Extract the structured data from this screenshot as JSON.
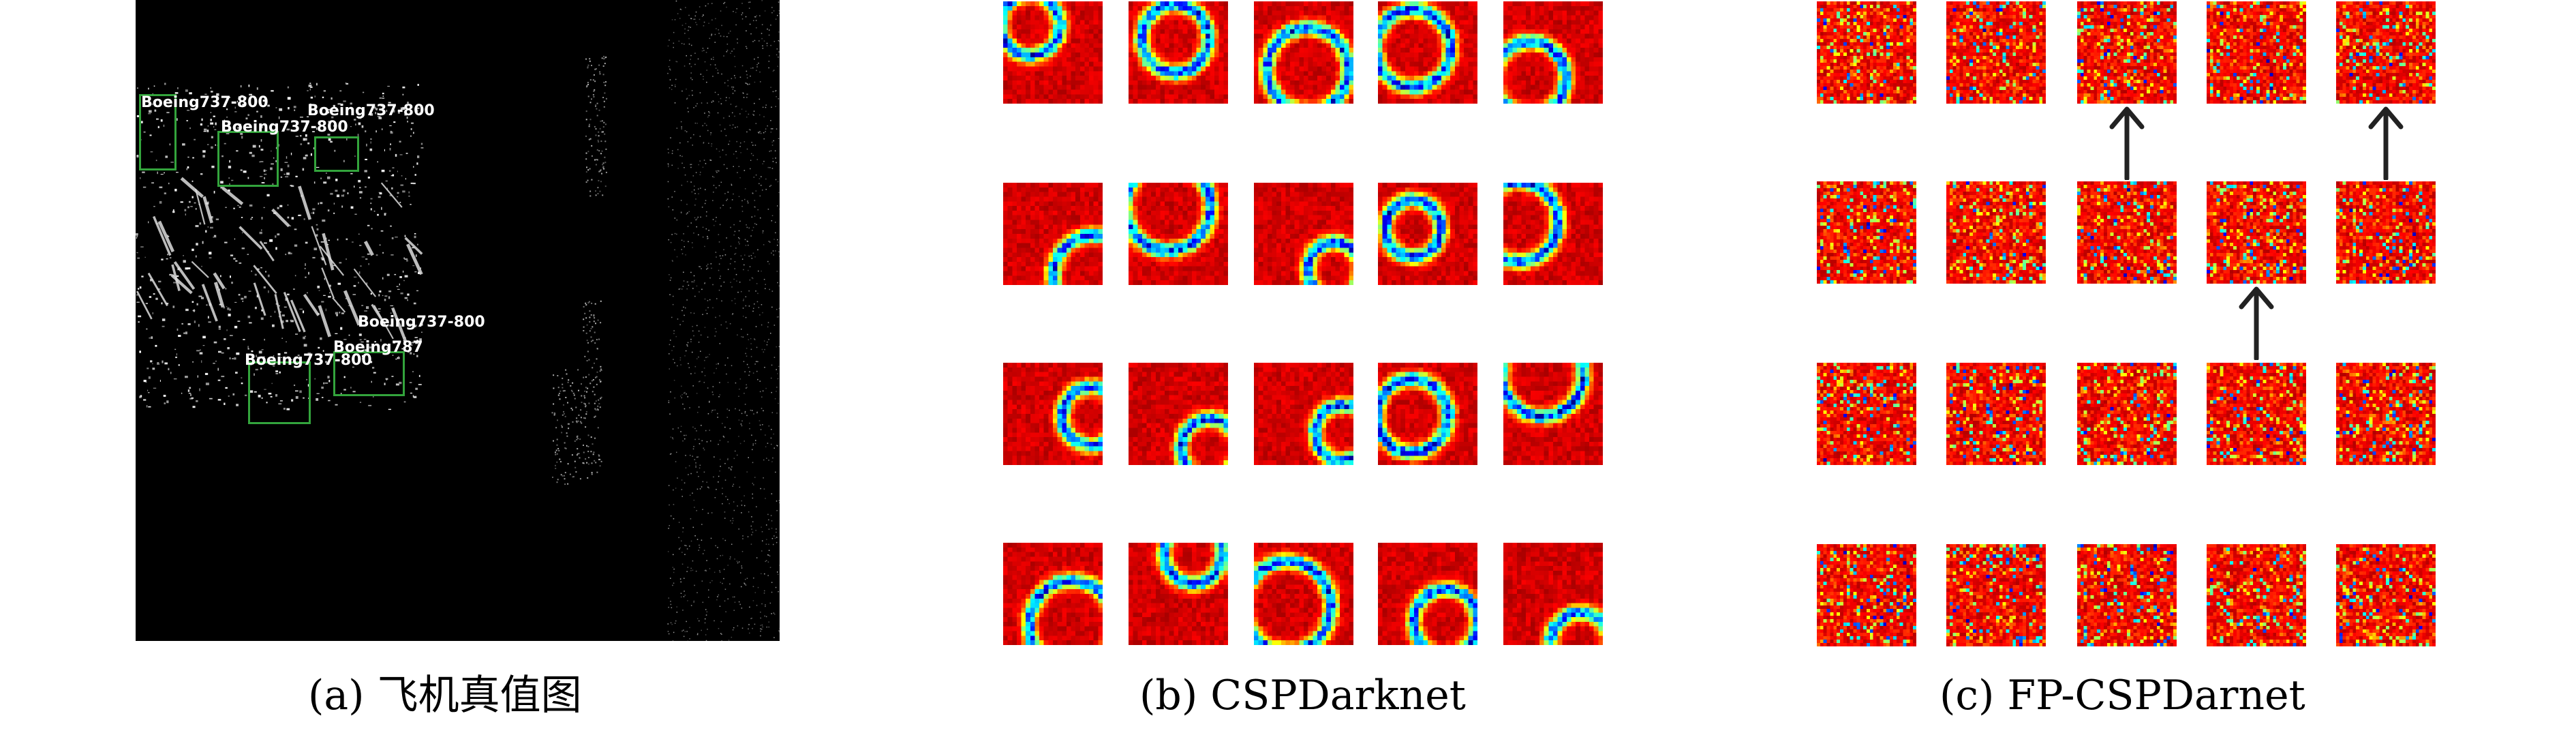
{
  "panel_a": {
    "caption": "(a) 飞机真值图",
    "detections": [
      {
        "label": "Boeing737-800"
      },
      {
        "label": "Boeing737-800"
      },
      {
        "label": "Boeing737-800"
      },
      {
        "label": "Boeing737-800"
      },
      {
        "label": "Boeing787"
      },
      {
        "label": "Boeing737-800"
      }
    ],
    "box_color": "#33a43c",
    "label_color": "#ffffff",
    "background_color": "#000000"
  },
  "panel_b": {
    "caption": "(b) CSPDarknet",
    "rows": 4,
    "cols": 5,
    "colormap": "jet"
  },
  "panel_c": {
    "caption": "(c) FP-CSPDarnet",
    "rows": 4,
    "cols": 5,
    "colormap": "jet",
    "arrows": [
      {
        "row": 0,
        "col": 2,
        "direction": "up"
      },
      {
        "row": 0,
        "col": 4,
        "direction": "up"
      },
      {
        "row": 1,
        "col": 3,
        "direction": "up"
      }
    ],
    "arrow_color": "#222222"
  }
}
